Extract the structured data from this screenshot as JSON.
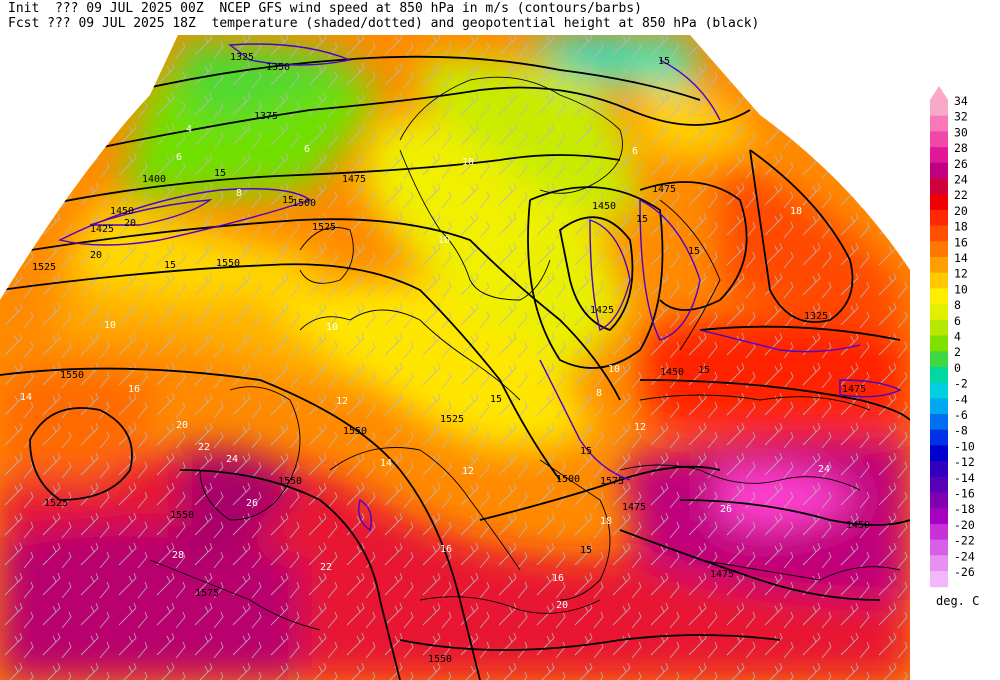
{
  "header": {
    "line1": "Init  ??? 09 JUL 2025 00Z  NCEP GFS wind speed at 850 hPa in m/s (contours/barbs)",
    "line2": "Fcst ??? 09 JUL 2025 18Z  temperature (shaded/dotted) and geopotential height at 850 hPa (black)"
  },
  "colorbar": {
    "unit": "deg. C",
    "levels": [
      {
        "label": "34",
        "color": "#f8a8c8"
      },
      {
        "label": "32",
        "color": "#f878b8"
      },
      {
        "label": "30",
        "color": "#f048a8"
      },
      {
        "label": "28",
        "color": "#e01898"
      },
      {
        "label": "26",
        "color": "#c00080"
      },
      {
        "label": "24",
        "color": "#d0003c"
      },
      {
        "label": "22",
        "color": "#f00000"
      },
      {
        "label": "20",
        "color": "#ff2800"
      },
      {
        "label": "18",
        "color": "#ff5000"
      },
      {
        "label": "16",
        "color": "#ff7800"
      },
      {
        "label": "14",
        "color": "#ffa000"
      },
      {
        "label": "12",
        "color": "#ffc800"
      },
      {
        "label": "10",
        "color": "#ffee00"
      },
      {
        "label": "8",
        "color": "#e0f000"
      },
      {
        "label": "6",
        "color": "#b8e800"
      },
      {
        "label": "4",
        "color": "#80e000"
      },
      {
        "label": "2",
        "color": "#40d840"
      },
      {
        "label": "0",
        "color": "#00d8a0"
      },
      {
        "label": "-2",
        "color": "#00d0e0"
      },
      {
        "label": "-4",
        "color": "#00a8f0"
      },
      {
        "label": "-6",
        "color": "#0070f0"
      },
      {
        "label": "-8",
        "color": "#0030e8"
      },
      {
        "label": "-10",
        "color": "#0000d0"
      },
      {
        "label": "-12",
        "color": "#3000c0"
      },
      {
        "label": "-14",
        "color": "#5800b8"
      },
      {
        "label": "-16",
        "color": "#8000b0"
      },
      {
        "label": "-18",
        "color": "#a800c0"
      },
      {
        "label": "-20",
        "color": "#c830d8"
      },
      {
        "label": "-22",
        "color": "#d860e8"
      },
      {
        "label": "-24",
        "color": "#e890f0"
      },
      {
        "label": "-26",
        "color": "#f0b8f8"
      }
    ]
  },
  "map": {
    "height_labels": [
      {
        "text": "1325"
      },
      {
        "text": "1350"
      },
      {
        "text": "1375"
      },
      {
        "text": "1400"
      },
      {
        "text": "1425"
      },
      {
        "text": "1450"
      },
      {
        "text": "1475"
      },
      {
        "text": "1500"
      },
      {
        "text": "1525"
      },
      {
        "text": "1550"
      },
      {
        "text": "1575"
      },
      {
        "text": "1525"
      },
      {
        "text": "1550"
      },
      {
        "text": "1425"
      },
      {
        "text": "1450"
      },
      {
        "text": "1475"
      },
      {
        "text": "1525"
      },
      {
        "text": "1550"
      },
      {
        "text": "1325"
      },
      {
        "text": "1450"
      },
      {
        "text": "1475"
      },
      {
        "text": "1550"
      },
      {
        "text": "1525"
      },
      {
        "text": "1550"
      },
      {
        "text": "1450"
      },
      {
        "text": "1475"
      },
      {
        "text": "1550"
      },
      {
        "text": "1575"
      },
      {
        "text": "1500"
      },
      {
        "text": "1475"
      }
    ],
    "wind_labels": [
      {
        "text": "15"
      },
      {
        "text": "20"
      },
      {
        "text": "15"
      },
      {
        "text": "20"
      },
      {
        "text": "15"
      },
      {
        "text": "15"
      },
      {
        "text": "15"
      },
      {
        "text": "15"
      },
      {
        "text": "15"
      },
      {
        "text": "15"
      },
      {
        "text": "15"
      },
      {
        "text": "15"
      }
    ],
    "temp_labels": [
      {
        "text": "4"
      },
      {
        "text": "6"
      },
      {
        "text": "6"
      },
      {
        "text": "8"
      },
      {
        "text": "10"
      },
      {
        "text": "10"
      },
      {
        "text": "10"
      },
      {
        "text": "12"
      },
      {
        "text": "14"
      },
      {
        "text": "16"
      },
      {
        "text": "18"
      },
      {
        "text": "20"
      },
      {
        "text": "22"
      },
      {
        "text": "24"
      },
      {
        "text": "26"
      },
      {
        "text": "28"
      },
      {
        "text": "12"
      },
      {
        "text": "14"
      },
      {
        "text": "16"
      },
      {
        "text": "18"
      },
      {
        "text": "20"
      },
      {
        "text": "22"
      },
      {
        "text": "24"
      },
      {
        "text": "26"
      },
      {
        "text": "10"
      },
      {
        "text": "12"
      },
      {
        "text": "8"
      },
      {
        "text": "10"
      },
      {
        "text": "6"
      },
      {
        "text": "16"
      }
    ]
  }
}
